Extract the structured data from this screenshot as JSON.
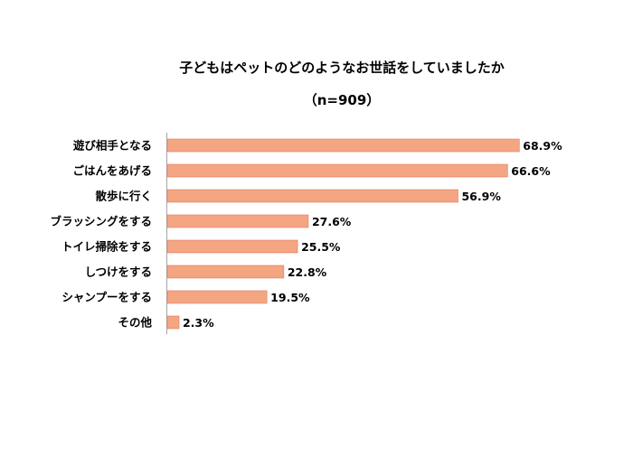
{
  "chart_data": {
    "type": "bar",
    "orientation": "horizontal",
    "title": "子どもはペットのどのようなお世話をしていましたか",
    "subtitle": "（n=909）",
    "categories": [
      "遊び相手となる",
      "ごはんをあげる",
      "散歩に行く",
      "ブラッシングをする",
      "トイレ掃除をする",
      "しつけをする",
      "シャンプーをする",
      "その他"
    ],
    "values": [
      68.9,
      66.6,
      56.9,
      27.6,
      25.5,
      22.8,
      19.5,
      2.3
    ],
    "value_labels": [
      "68.9%",
      "66.6%",
      "56.9%",
      "27.6%",
      "25.5%",
      "22.8%",
      "19.5%",
      "2.3%"
    ],
    "unit": "%",
    "xlim": [
      0,
      70
    ],
    "grid": false,
    "legend": "none",
    "bar_color": "#F4A582",
    "bar_edge_color": "#E07A5F",
    "axis_color": "#A6A6A6"
  }
}
